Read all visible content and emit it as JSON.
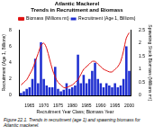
{
  "chart_data": {
    "type": "bar",
    "title": "Atlantic Mackerel",
    "subtitle": "Trends in Recruitment and Biomass",
    "caption": "Figure 22.1. Trends in recruitment (age 1) and spawning biomass for Atlantic mackerel.",
    "x_label": "Recruitment Year Class; Biomass Year",
    "y_label": "Recruitment (Age 1, Billions)",
    "y2_label": "Spawning Stock Biomass (Millions mt)",
    "categories": [
      null,
      null,
      null,
      "1965",
      null,
      null,
      null,
      null,
      "1970",
      null,
      null,
      null,
      null,
      "1975",
      null,
      null,
      null,
      null,
      "1980",
      null,
      null,
      null,
      null,
      "1985",
      null,
      null,
      null,
      null,
      "1990",
      null,
      null,
      null,
      null,
      "1995",
      null,
      null,
      null,
      null,
      "2000"
    ],
    "series": [
      {
        "name": "Recruitment (Age 1, Billions)",
        "type": "bar",
        "color": "#1f2fd0",
        "values": [
          0.3,
          0.5,
          0.8,
          1.0,
          2.0,
          4.5,
          1.5,
          6.5,
          2.0,
          1.2,
          1.0,
          1.0,
          3.5,
          0.8,
          0.5,
          0.7,
          1.5,
          0.8,
          1.0,
          1.2,
          5.0,
          1.5,
          2.5,
          1.5,
          2.0,
          3.0,
          4.0,
          2.0,
          1.5,
          1.0,
          1.5,
          1.2,
          1.0,
          1.5,
          1.0,
          1.2,
          2.0,
          6.0,
          3.0
        ]
      },
      {
        "name": "Biomass (Millions mt)",
        "type": "line",
        "axis": "y2",
        "color": "#e01010",
        "marker": "none",
        "values": [
          0.4,
          0.5,
          0.6,
          0.8,
          1.0,
          1.3,
          1.6,
          1.9,
          2.0,
          1.8,
          1.4,
          1.0,
          0.7,
          0.5,
          0.4,
          0.3,
          0.3,
          0.35,
          0.4,
          0.5,
          0.6,
          0.8,
          1.0,
          1.1,
          1.2,
          1.3,
          1.3,
          1.2,
          1.1,
          1.0,
          0.95,
          0.9,
          0.9,
          1.0,
          1.1,
          1.3,
          1.7,
          2.2,
          2.4
        ]
      }
    ],
    "ylim": [
      0,
      8
    ],
    "yticks": [
      0,
      2,
      4,
      6,
      8
    ],
    "y2lim": [
      0,
      2.5
    ],
    "y2ticks": [
      0,
      0.5,
      1,
      1.5,
      2,
      2.5
    ],
    "legend": "top",
    "grid": false
  }
}
